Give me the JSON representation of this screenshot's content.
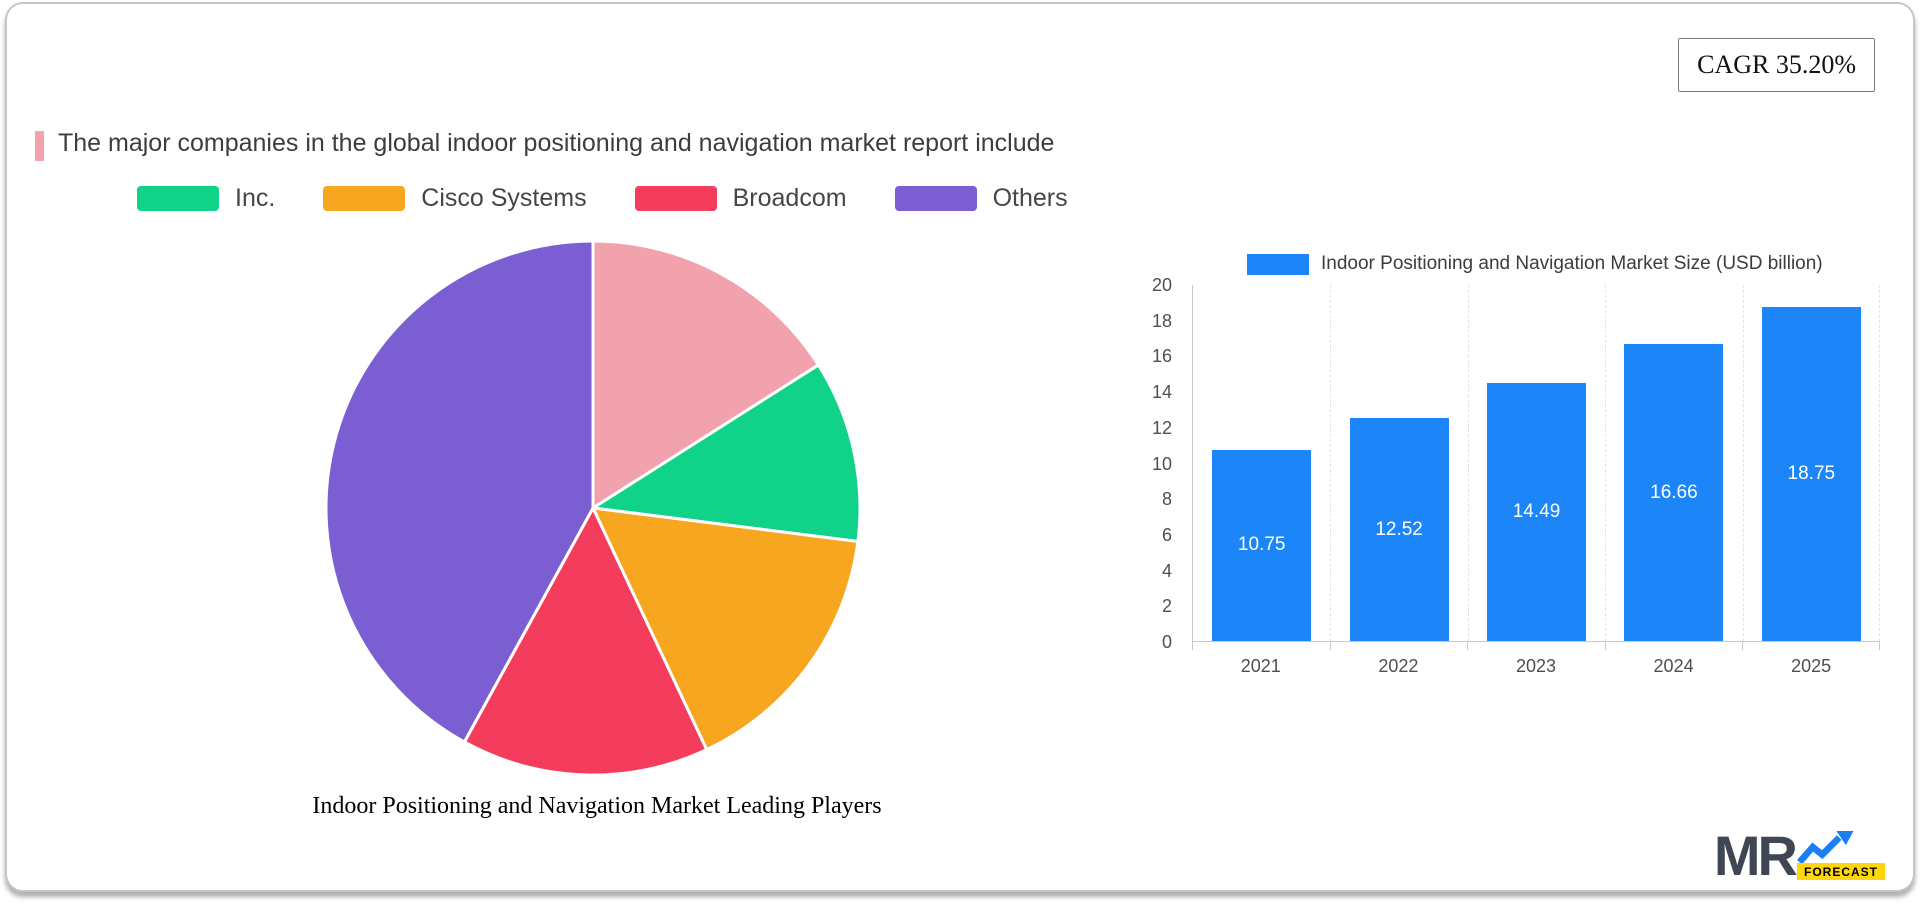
{
  "header": {
    "cagr": "CAGR 35.20%",
    "title": "The major companies in the global indoor positioning and navigation market report include",
    "marker_color": "#f2a2ad"
  },
  "chart_data": [
    {
      "type": "pie",
      "title": "Indoor Positioning and Navigation Market Leading Players",
      "legend": [
        {
          "label": "Inc.",
          "color": "#10d389"
        },
        {
          "label": "Cisco Systems",
          "color": "#f6a71f"
        },
        {
          "label": "Broadcom",
          "color": "#f43d5d"
        },
        {
          "label": "Others",
          "color": "#7b5ed2"
        }
      ],
      "slices": [
        {
          "label": "",
          "value": 16,
          "color": "#f2a2ad"
        },
        {
          "label": "Inc.",
          "value": 11,
          "color": "#10d389"
        },
        {
          "label": "Cisco Systems",
          "value": 16,
          "color": "#f6a71f"
        },
        {
          "label": "Broadcom",
          "value": 15,
          "color": "#f43d5d"
        },
        {
          "label": "Others",
          "value": 42,
          "color": "#7b5ed2"
        }
      ],
      "start_angle_deg": 0,
      "direction": "clockwise"
    },
    {
      "type": "bar",
      "legend_label": "Indoor Positioning and Navigation Market  Size (USD billion)",
      "categories": [
        "2021",
        "2022",
        "2023",
        "2024",
        "2025"
      ],
      "values": [
        10.75,
        12.52,
        14.49,
        16.66,
        18.75
      ],
      "bar_color": "#1c86f8",
      "ylim": [
        0,
        20
      ],
      "ytick_step": 2,
      "legend_position": "top",
      "grid": "vertical-dashed"
    }
  ],
  "logo": {
    "mr": "MR",
    "forecast": "FORECAST"
  }
}
